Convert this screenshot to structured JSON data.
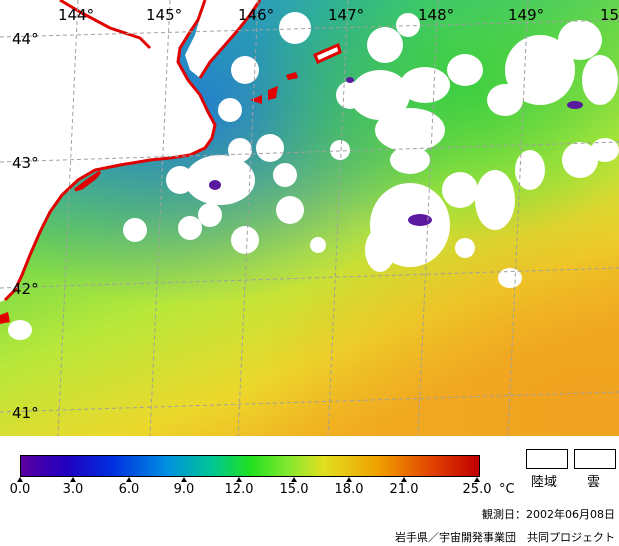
{
  "map": {
    "lon_labels": [
      "144°",
      "145°",
      "146°",
      "147°",
      "148°",
      "149°",
      "15"
    ],
    "lat_labels": [
      "44°",
      "43°",
      "42°",
      "41°"
    ]
  },
  "legend": {
    "ticks": [
      "0.0",
      "3.0",
      "6.0",
      "9.0",
      "12.0",
      "15.0",
      "18.0",
      "21.0",
      "25.0"
    ],
    "unit": "°C",
    "land_label": "陸域",
    "cloud_label": "雲"
  },
  "footer": {
    "observation": "観測日：2002年06月08日",
    "credit": "岩手県／宇宙開発事業団　共同プロジェクト"
  },
  "colors": {
    "coast": "#e00000",
    "cloud": "#ffffff",
    "grid": "#a0a0a0"
  }
}
